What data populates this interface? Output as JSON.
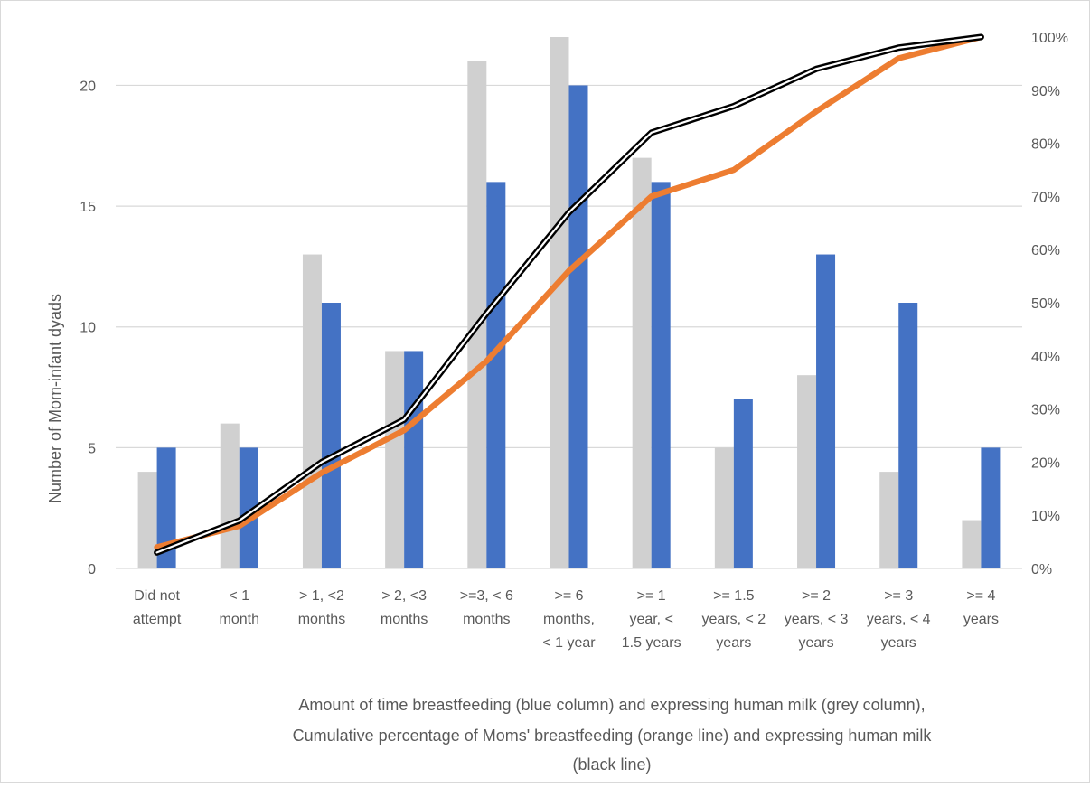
{
  "chart_data": {
    "type": "bar",
    "categories": [
      [
        "Did not",
        "attempt"
      ],
      [
        "< 1",
        "month"
      ],
      [
        "> 1, <2",
        "months"
      ],
      [
        "> 2, <3",
        "months"
      ],
      [
        ">=3, < 6",
        "months"
      ],
      [
        ">= 6",
        "months,",
        "< 1 year"
      ],
      [
        ">= 1",
        "year, <",
        "1.5  years"
      ],
      [
        ">= 1.5",
        "years, < 2",
        "years"
      ],
      [
        ">= 2",
        "years, < 3",
        "years"
      ],
      [
        ">= 3",
        "years, < 4",
        "years"
      ],
      [
        ">=  4",
        "years"
      ]
    ],
    "series": [
      {
        "kind": "bar",
        "axis": "left",
        "color": "#d0d0d0",
        "values": [
          4,
          6,
          13,
          9,
          21,
          22,
          17,
          5,
          8,
          4,
          2
        ]
      },
      {
        "kind": "bar",
        "axis": "left",
        "color": "#4472c4",
        "values": [
          5,
          5,
          11,
          9,
          16,
          20,
          16,
          7,
          13,
          11,
          5
        ]
      },
      {
        "kind": "line",
        "axis": "right",
        "color": "#ed7d31",
        "values": [
          4,
          8,
          18,
          26,
          39,
          56,
          70,
          75,
          86,
          96,
          100
        ]
      },
      {
        "kind": "line",
        "axis": "right",
        "color": "#000000",
        "style": "double",
        "values": [
          3,
          9,
          20,
          28,
          48,
          67,
          82,
          87,
          94,
          98,
          100
        ]
      }
    ],
    "ylabel": "Number of Mom-infant dyads",
    "xlabel_lines": [
      "Amount of time breastfeeding (blue column) and expressing human milk (grey column),",
      "Cumulative percentage of Moms' breastfeeding (orange line) and expressing human milk",
      "(black line)"
    ],
    "y_left": {
      "ticks": [
        0,
        5,
        10,
        15,
        20
      ],
      "max": 22
    },
    "y_right": {
      "ticks": [
        "0%",
        "10%",
        "20%",
        "30%",
        "40%",
        "50%",
        "60%",
        "70%",
        "80%",
        "90%",
        "100%"
      ],
      "max": 100
    },
    "grid": true
  }
}
